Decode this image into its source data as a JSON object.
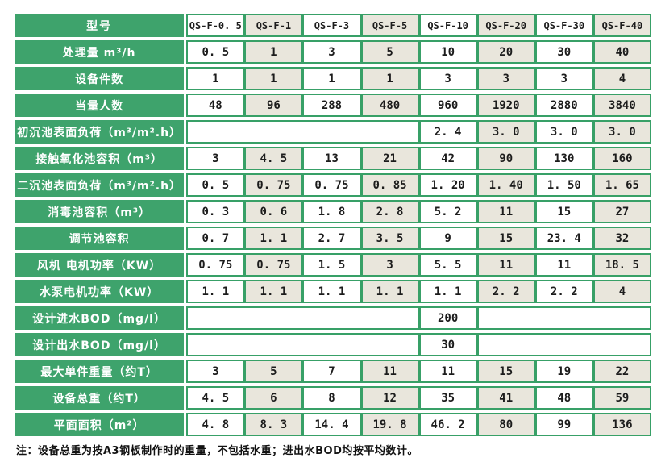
{
  "colors": {
    "label_green": "#3ea36c",
    "grid_green": "#38a067",
    "cell_beige": "#e9e6dc",
    "cell_white": "#ffffff",
    "text_dark": "#1c1c1c"
  },
  "note": "注：设备总重为按A3钢板制作时的重量，不包括水重；进出水BOD均按平均数计。",
  "chart_data": {
    "type": "table",
    "title": "",
    "header_label": "型号",
    "columns": [
      "QS-F-0. 5",
      "QS-F-1",
      "QS-F-3",
      "QS-F-5",
      "QS-F-10",
      "QS-F-20",
      "QS-F-30",
      "QS-F-40"
    ],
    "rows": [
      {
        "label": "处理量 m³/h",
        "cells": [
          "0. 5",
          "1",
          "3",
          "5",
          "10",
          "20",
          "30",
          "40"
        ]
      },
      {
        "label": "设备件数",
        "cells": [
          "1",
          "1",
          "1",
          "1",
          "3",
          "3",
          "3",
          "4"
        ]
      },
      {
        "label": "当量人数",
        "cells": [
          "48",
          "96",
          "288",
          "480",
          "960",
          "1920",
          "2880",
          "3840"
        ]
      },
      {
        "label": "初沉池表面负荷（m³/m².h）",
        "cells": [
          {
            "text": "",
            "span": 4
          },
          "2. 4",
          "3. 0",
          "3. 0",
          "3. 0"
        ]
      },
      {
        "label": "接触氧化池容积（m³）",
        "cells": [
          "3",
          "4. 5",
          "13",
          "21",
          "42",
          "90",
          "130",
          "160"
        ]
      },
      {
        "label": "二沉池表面负荷（m³/m².h）",
        "cells": [
          "0. 5",
          "0. 75",
          "0. 75",
          "0. 85",
          "1. 20",
          "1. 40",
          "1. 50",
          "1. 65"
        ]
      },
      {
        "label": "消毒池容积（m³）",
        "cells": [
          "0. 3",
          "0. 6",
          "1. 8",
          "2. 8",
          "5. 2",
          "11",
          "15",
          "27"
        ]
      },
      {
        "label": "调节池容积",
        "cells": [
          "0. 7",
          "1. 1",
          "2. 7",
          "3. 5",
          "9",
          "15",
          "23. 4",
          "32"
        ]
      },
      {
        "label": "风机 电机功率（KW）",
        "cells": [
          "0. 75",
          "0. 75",
          "1. 5",
          "3",
          "5. 5",
          "11",
          "11",
          "18. 5"
        ]
      },
      {
        "label": "水泵电机功率（KW）",
        "cells": [
          "1. 1",
          "1. 1",
          "1. 1",
          "1. 1",
          "1. 1",
          "2. 2",
          "2. 2",
          "4"
        ]
      },
      {
        "label": "设计进水BOD（mg/l）",
        "cells": [
          {
            "text": "",
            "span": 4
          },
          "200",
          {
            "text": "",
            "span": 3
          }
        ]
      },
      {
        "label": "设计出水BOD（mg/l）",
        "cells": [
          {
            "text": "",
            "span": 4
          },
          "30",
          {
            "text": "",
            "span": 3
          }
        ]
      },
      {
        "label": "最大单件重量（约T）",
        "cells": [
          "3",
          "5",
          "7",
          "11",
          "11",
          "15",
          "19",
          "22"
        ]
      },
      {
        "label": "设备总重（约T）",
        "cells": [
          "4. 5",
          "6",
          "8",
          "12",
          "35",
          "41",
          "48",
          "59"
        ]
      },
      {
        "label": "平面面积（m²）",
        "cells": [
          "4. 8",
          "8. 3",
          "14. 4",
          "19. 8",
          "46. 2",
          "80",
          "99",
          "136"
        ]
      }
    ]
  }
}
